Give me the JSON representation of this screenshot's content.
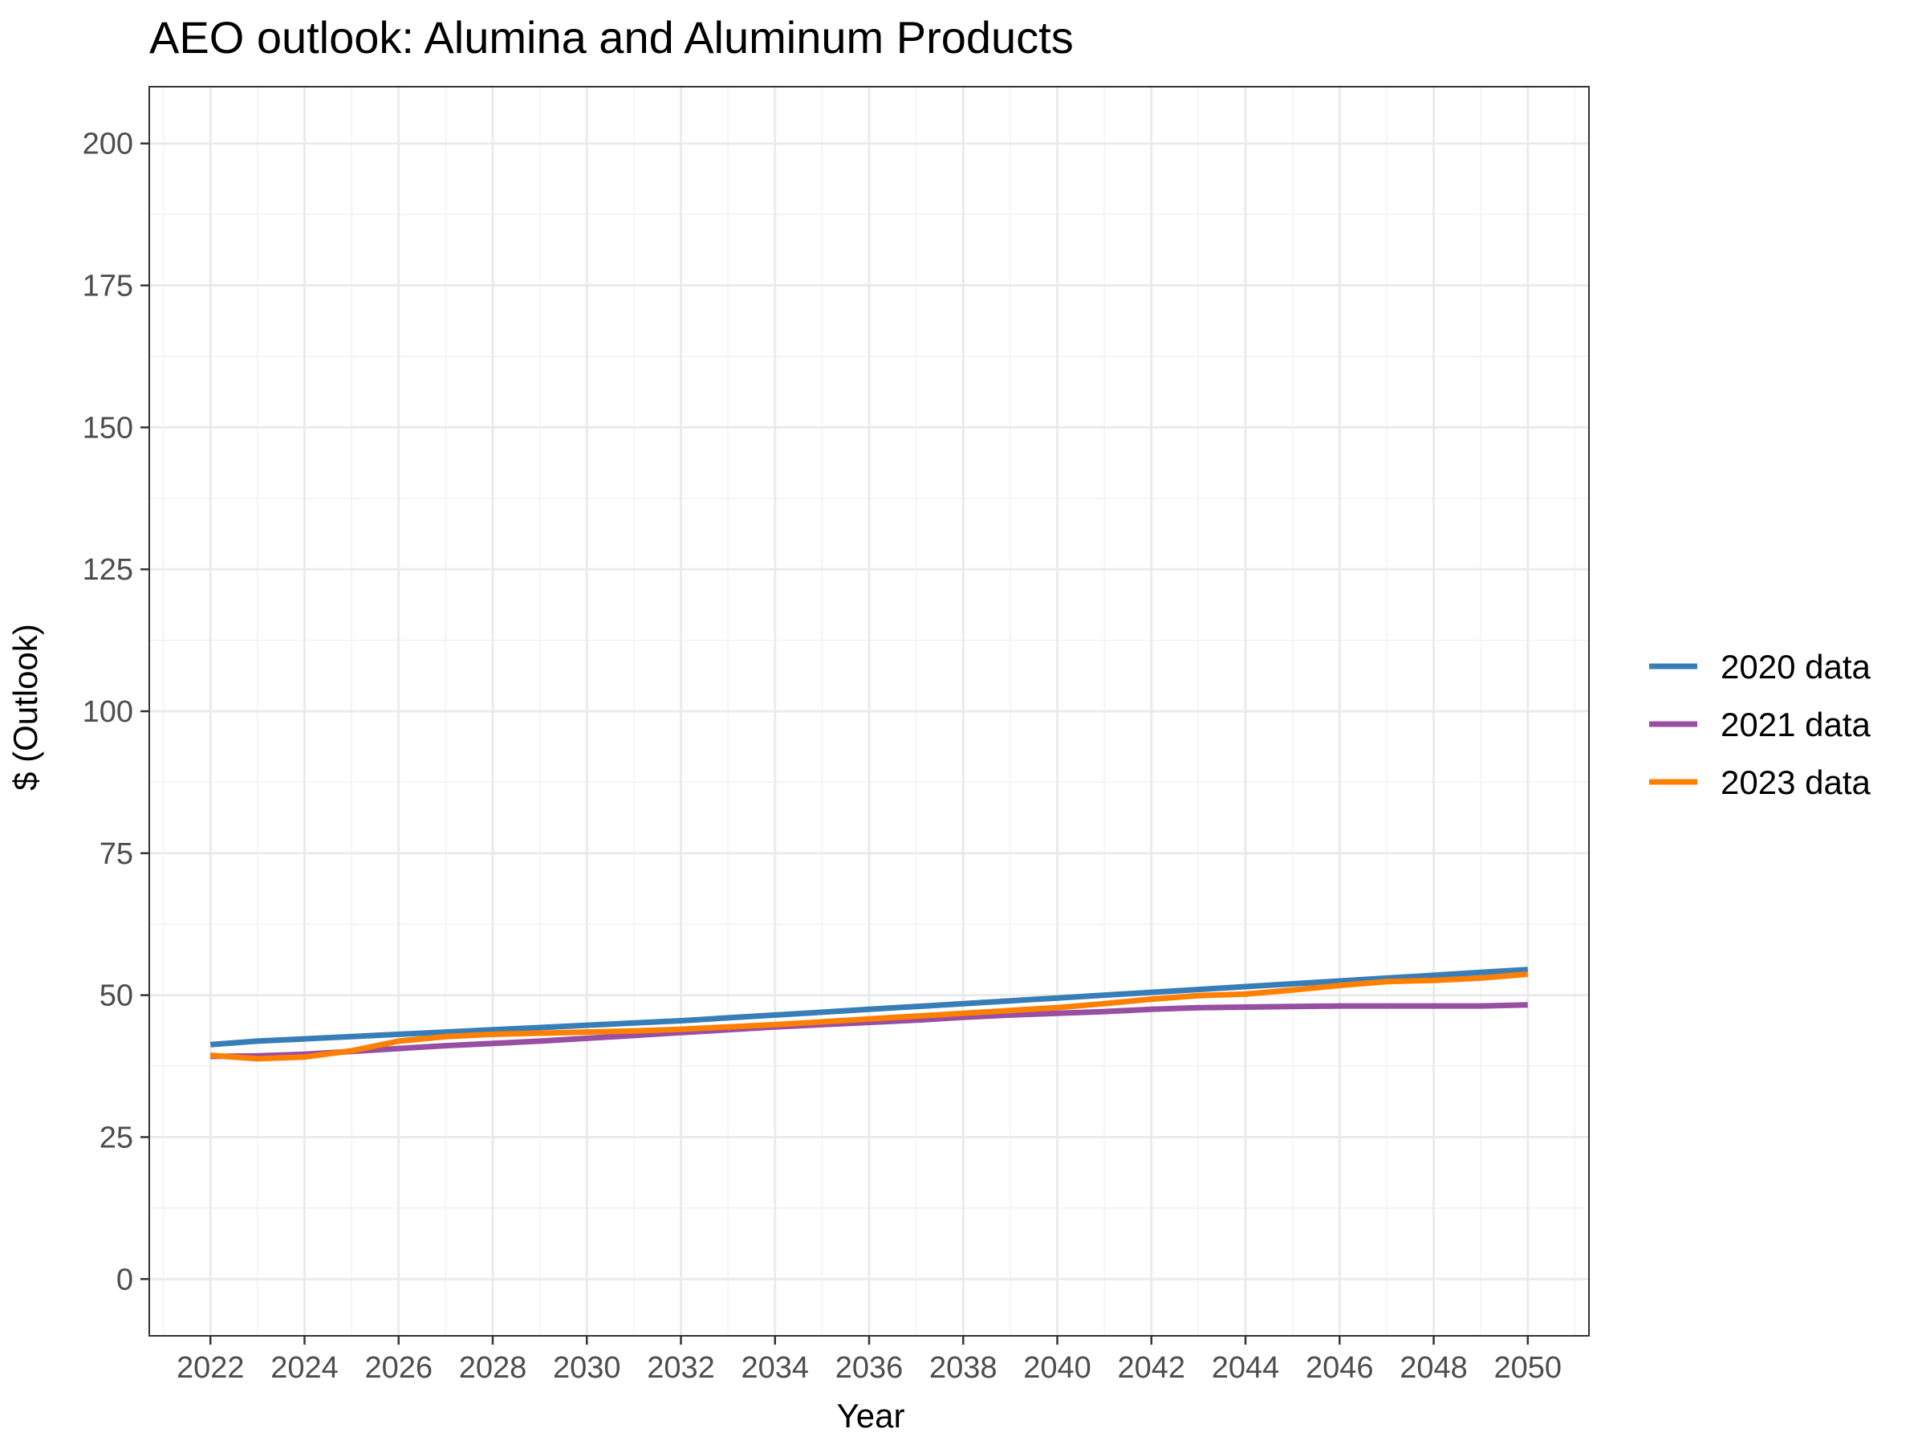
{
  "chart_data": {
    "type": "line",
    "title": "AEO outlook: Alumina and Aluminum Products",
    "xlabel": "Year",
    "ylabel": "$ (Outlook)",
    "xlim": [
      2020.7,
      2051.3
    ],
    "ylim": [
      -10,
      210
    ],
    "x_ticks": [
      2022,
      2024,
      2026,
      2028,
      2030,
      2032,
      2034,
      2036,
      2038,
      2040,
      2042,
      2044,
      2046,
      2048,
      2050
    ],
    "x_tick_labels": [
      "2022",
      "2024",
      "2026",
      "2028",
      "2030",
      "2032",
      "2034",
      "2036",
      "2038",
      "2040",
      "2042",
      "2044",
      "2046",
      "2048",
      "2050"
    ],
    "y_ticks": [
      0,
      25,
      50,
      75,
      100,
      125,
      150,
      175,
      200
    ],
    "y_tick_labels": [
      "0",
      "25",
      "50",
      "75",
      "100",
      "125",
      "150",
      "175",
      "200"
    ],
    "grid": true,
    "legend_position": "right",
    "x": [
      2022,
      2023,
      2024,
      2025,
      2026,
      2027,
      2028,
      2029,
      2030,
      2031,
      2032,
      2033,
      2034,
      2035,
      2036,
      2037,
      2038,
      2039,
      2040,
      2041,
      2042,
      2043,
      2044,
      2045,
      2046,
      2047,
      2048,
      2049,
      2050
    ],
    "series": [
      {
        "name": "2020 data",
        "color": "#377eb8",
        "values": [
          41.3,
          41.9,
          42.3,
          42.7,
          43.1,
          43.5,
          43.9,
          44.3,
          44.7,
          45.1,
          45.5,
          46.0,
          46.5,
          47.0,
          47.5,
          48.0,
          48.5,
          49.0,
          49.5,
          50.0,
          50.5,
          51.0,
          51.5,
          52.0,
          52.5,
          53.0,
          53.5,
          54.0,
          54.5
        ]
      },
      {
        "name": "2021 data",
        "color": "#984ea3",
        "values": [
          39.2,
          39.3,
          39.6,
          40.1,
          40.6,
          41.1,
          41.5,
          41.9,
          42.4,
          42.9,
          43.4,
          43.9,
          44.4,
          44.8,
          45.2,
          45.6,
          46.1,
          46.5,
          46.8,
          47.1,
          47.5,
          47.8,
          47.9,
          48.0,
          48.1,
          48.1,
          48.1,
          48.1,
          48.3
        ]
      },
      {
        "name": "2023 data",
        "color": "#ff7f00",
        "values": [
          39.4,
          38.8,
          39.1,
          40.2,
          41.9,
          42.7,
          43.1,
          43.3,
          43.5,
          43.7,
          44.0,
          44.4,
          44.8,
          45.3,
          45.8,
          46.3,
          46.8,
          47.3,
          47.8,
          48.5,
          49.3,
          49.9,
          50.2,
          50.9,
          51.7,
          52.4,
          52.6,
          53.0,
          53.7
        ]
      }
    ]
  }
}
